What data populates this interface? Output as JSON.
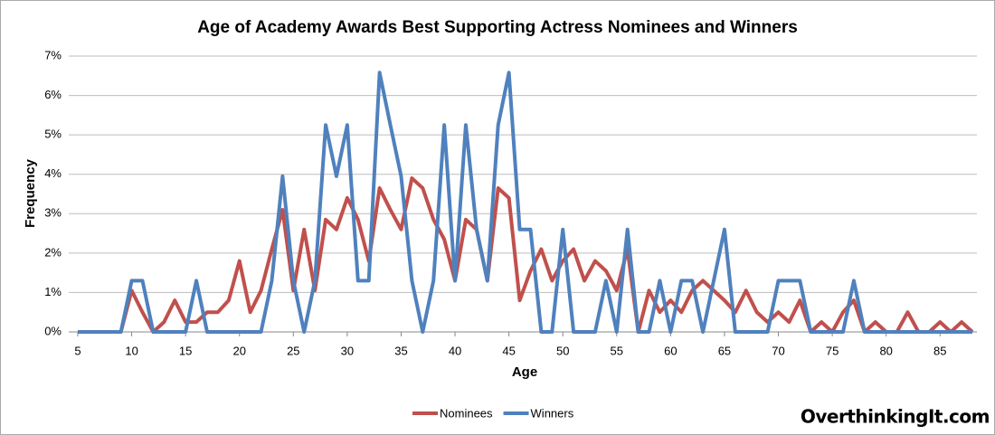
{
  "chart_data": {
    "type": "line",
    "title": "Age of Academy Awards Best Supporting Actress Nominees and Winners",
    "xlabel": "Age",
    "ylabel": "Frequency",
    "watermark": "OverthinkingIt.com",
    "x": [
      5,
      6,
      7,
      8,
      9,
      10,
      11,
      12,
      13,
      14,
      15,
      16,
      17,
      18,
      19,
      20,
      21,
      22,
      23,
      24,
      25,
      26,
      27,
      28,
      29,
      30,
      31,
      32,
      33,
      34,
      35,
      36,
      37,
      38,
      39,
      40,
      41,
      42,
      43,
      44,
      45,
      46,
      47,
      48,
      49,
      50,
      51,
      52,
      53,
      54,
      55,
      56,
      57,
      58,
      59,
      60,
      61,
      62,
      63,
      64,
      65,
      66,
      67,
      68,
      69,
      70,
      71,
      72,
      73,
      74,
      75,
      76,
      77,
      78,
      79,
      80,
      81,
      82,
      83,
      84,
      85,
      86,
      87,
      88
    ],
    "series": [
      {
        "name": "Nominees",
        "color": "#c0504d",
        "values": [
          0,
          0,
          0,
          0,
          0,
          1.05,
          0.5,
          0,
          0.25,
          0.8,
          0.25,
          0.25,
          0.5,
          0.5,
          0.8,
          1.8,
          0.5,
          1.05,
          2.1,
          3.1,
          1.05,
          2.6,
          1.05,
          2.85,
          2.6,
          3.4,
          2.85,
          1.8,
          3.65,
          3.1,
          2.6,
          3.9,
          3.65,
          2.85,
          2.35,
          1.3,
          2.85,
          2.6,
          1.3,
          3.65,
          3.4,
          0.8,
          1.55,
          2.1,
          1.3,
          1.8,
          2.1,
          1.3,
          1.8,
          1.55,
          1.05,
          2.1,
          0,
          1.05,
          0.5,
          0.8,
          0.5,
          1.05,
          1.3,
          1.05,
          0.8,
          0.5,
          1.05,
          0.5,
          0.25,
          0.5,
          0.25,
          0.8,
          0,
          0.25,
          0,
          0.5,
          0.8,
          0,
          0.25,
          0,
          0,
          0.5,
          0,
          0,
          0.25,
          0,
          0.25,
          0
        ]
      },
      {
        "name": "Winners",
        "color": "#4f81bd",
        "values": [
          0,
          0,
          0,
          0,
          0,
          1.3,
          1.3,
          0,
          0,
          0,
          0,
          1.3,
          0,
          0,
          0,
          0,
          0,
          0,
          1.3,
          3.95,
          1.3,
          0,
          1.3,
          5.25,
          3.95,
          5.25,
          1.3,
          1.3,
          6.58,
          5.25,
          3.95,
          1.3,
          0,
          1.3,
          5.25,
          1.3,
          5.25,
          2.6,
          1.3,
          5.25,
          6.58,
          2.6,
          2.6,
          0,
          0,
          2.6,
          0,
          0,
          0,
          1.3,
          0,
          2.6,
          0,
          0,
          1.3,
          0,
          1.3,
          1.3,
          0,
          1.3,
          2.6,
          0,
          0,
          0,
          0,
          1.3,
          1.3,
          1.3,
          0,
          0,
          0,
          0,
          1.3,
          0,
          0,
          0,
          0,
          0,
          0,
          0,
          0,
          0,
          0,
          0
        ]
      }
    ],
    "xlim": [
      5,
      88
    ],
    "xticks": [
      5,
      10,
      15,
      20,
      25,
      30,
      35,
      40,
      45,
      50,
      55,
      60,
      65,
      70,
      75,
      80,
      85
    ],
    "ylim": [
      0,
      7
    ],
    "yticks": [
      {
        "value": 0,
        "label": "0%"
      },
      {
        "value": 1,
        "label": "1%"
      },
      {
        "value": 2,
        "label": "2%"
      },
      {
        "value": 3,
        "label": "3%"
      },
      {
        "value": 4,
        "label": "4%"
      },
      {
        "value": 5,
        "label": "5%"
      },
      {
        "value": 6,
        "label": "6%"
      },
      {
        "value": 7,
        "label": "7%"
      }
    ],
    "grid": true,
    "legend": "bottom"
  }
}
